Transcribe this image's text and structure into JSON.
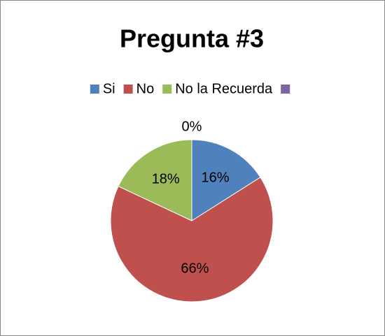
{
  "chart_data": {
    "type": "pie",
    "title": "Pregunta #3",
    "categories": [
      "Si",
      "No",
      "No la Recuerda",
      null
    ],
    "values": [
      16,
      66,
      18,
      0
    ],
    "value_labels": [
      "16%",
      "66%",
      "18%",
      "0%"
    ],
    "colors": [
      "#4f81bd",
      "#c0504d",
      "#9bbb59",
      "#8064a2"
    ],
    "legend": "top"
  }
}
